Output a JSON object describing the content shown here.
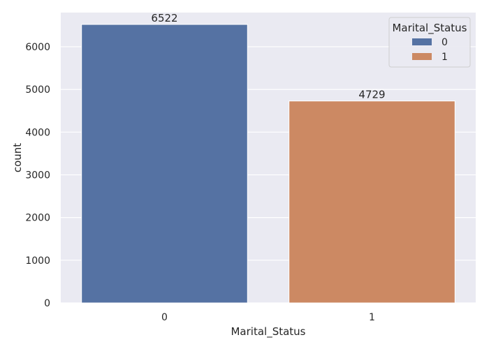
{
  "chart_data": {
    "type": "bar",
    "categories": [
      "0",
      "1"
    ],
    "values": [
      6522,
      4729
    ],
    "data_labels": [
      "6522",
      "4729"
    ],
    "xlabel": "Marital_Status",
    "ylabel": "count",
    "ylim": [
      0,
      6800
    ],
    "yticks": [
      0,
      1000,
      2000,
      3000,
      4000,
      5000,
      6000
    ],
    "grid": true,
    "colors": [
      "#5572a3",
      "#cc8963"
    ],
    "background": "#eaeaf2",
    "legend": {
      "title": "Marital_Status",
      "placement": "top-right",
      "entries": [
        "0",
        "1"
      ]
    }
  }
}
